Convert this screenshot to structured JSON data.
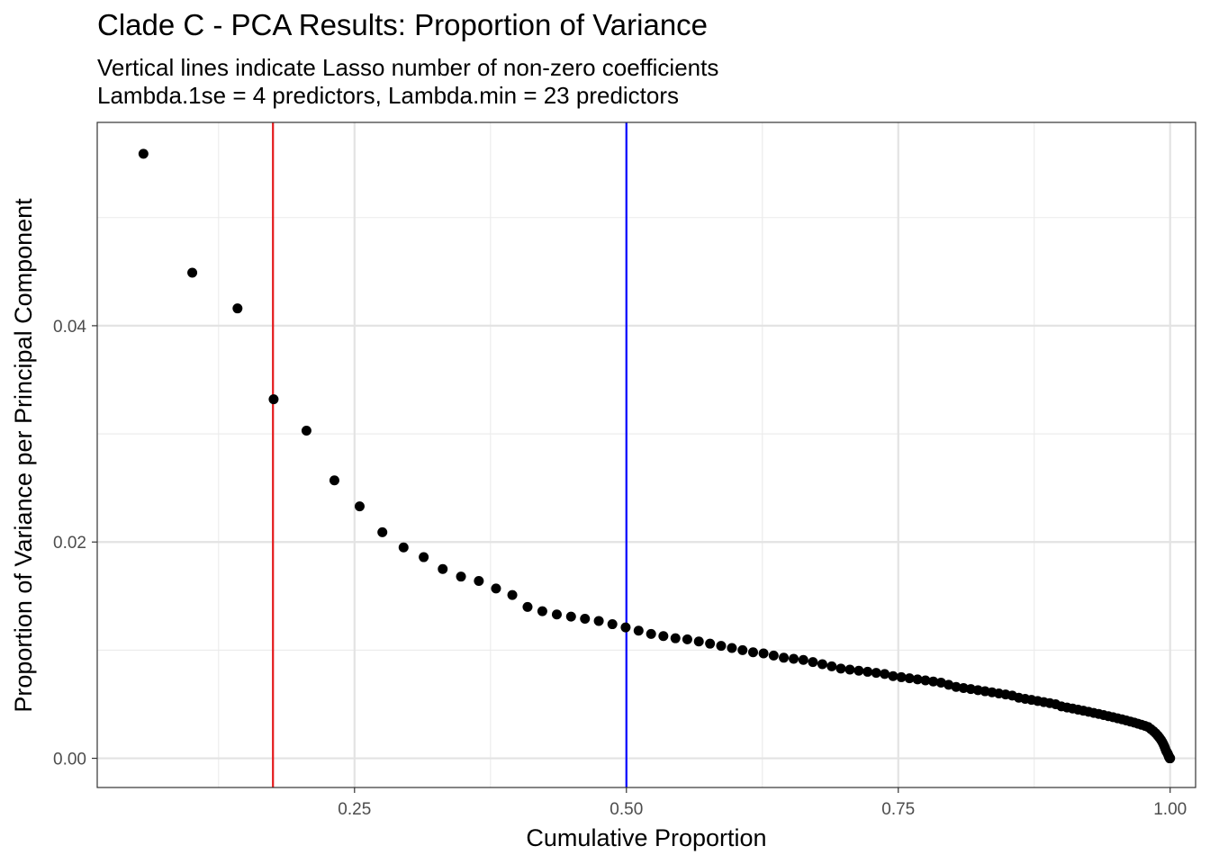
{
  "chart_data": {
    "type": "scatter",
    "title": "Clade C - PCA Results: Proportion of Variance",
    "subtitle": [
      "Vertical lines indicate Lasso number of non-zero coefficients",
      "Lambda.1se = 4 predictors, Lambda.min = 23 predictors"
    ],
    "xlabel": "Cumulative Proportion",
    "ylabel": "Proportion of Variance per Principal Component",
    "xlim": [
      0.0134,
      1.0234
    ],
    "ylim": [
      -0.0027,
      0.0588
    ],
    "xticks": [
      0.25,
      0.5,
      0.75,
      1.0
    ],
    "xtick_labels": [
      "0.25",
      "0.50",
      "0.75",
      "1.00"
    ],
    "yticks": [
      0.0,
      0.02,
      0.04
    ],
    "ytick_labels": [
      "0.00",
      "0.02",
      "0.04"
    ],
    "grid": true,
    "vlines": [
      {
        "label": "Lambda.1se = 4 predictors",
        "x": 0.175,
        "color": "#e41a1c"
      },
      {
        "label": "Lambda.min = 23 predictors",
        "x": 0.5,
        "color": "#0000ff"
      }
    ],
    "points_color": "#000000",
    "series": [
      {
        "x": [
          0.0559,
          0.1008,
          0.1424,
          0.1756,
          0.2058,
          0.2315,
          0.2547,
          0.2756,
          0.2951,
          0.3136,
          0.3311,
          0.3479,
          0.3643,
          0.3801,
          0.3951,
          0.4091,
          0.4227,
          0.436,
          0.4491,
          0.4619,
          0.4746,
          0.4871,
          0.4993,
          0.5112,
          0.5227,
          0.534,
          0.5451,
          0.556,
          0.5666,
          0.5769,
          0.5871,
          0.597,
          0.6068,
          0.6165,
          0.6261,
          0.6354,
          0.6447,
          0.6538,
          0.6627,
          0.6715,
          0.6802,
          0.6888,
          0.6972,
          0.7055,
          0.7137,
          0.7218,
          0.7297,
          0.7375,
          0.7452,
          0.7528,
          0.7603,
          0.7677,
          0.775,
          0.7822,
          0.7893,
          0.7963,
          0.8032,
          0.81,
          0.8167,
          0.8233,
          0.8298,
          0.8362,
          0.8425,
          0.8487,
          0.8548,
          0.8608,
          0.8667,
          0.8725,
          0.8782,
          0.8838,
          0.8893,
          0.8947,
          0.9,
          0.9052,
          0.9103,
          0.9153,
          0.9202,
          0.925,
          0.9297,
          0.9343,
          0.9388,
          0.9432,
          0.9475,
          0.9517,
          0.9557,
          0.9596,
          0.9634,
          0.967,
          0.9704,
          0.9737,
          0.9768,
          0.9797,
          0.9823,
          0.9847,
          0.9868,
          0.9886,
          0.9902,
          0.9916,
          0.9928,
          0.9938,
          0.9947,
          0.9955,
          0.9962,
          0.9968,
          0.9974,
          0.9979,
          0.9983,
          0.9987,
          0.999,
          0.9993,
          0.9996,
          0.9998,
          1.0
        ],
        "y": [
          0.0559,
          0.0449,
          0.0416,
          0.0332,
          0.0303,
          0.0257,
          0.0233,
          0.0209,
          0.0195,
          0.0186,
          0.0175,
          0.0168,
          0.0164,
          0.0157,
          0.0151,
          0.014,
          0.0136,
          0.0133,
          0.0131,
          0.0129,
          0.0127,
          0.0124,
          0.0121,
          0.0118,
          0.0115,
          0.0113,
          0.0111,
          0.011,
          0.0108,
          0.0106,
          0.0104,
          0.0102,
          0.01,
          0.0098,
          0.0097,
          0.0095,
          0.0093,
          0.0092,
          0.0091,
          0.0089,
          0.0087,
          0.0085,
          0.0083,
          0.0082,
          0.0081,
          0.008,
          0.0079,
          0.0078,
          0.0076,
          0.0075,
          0.0074,
          0.0073,
          0.0072,
          0.0071,
          0.007,
          0.0068,
          0.0066,
          0.0065,
          0.0064,
          0.0063,
          0.0062,
          0.0061,
          0.006,
          0.0059,
          0.0058,
          0.0056,
          0.0055,
          0.0054,
          0.0053,
          0.0052,
          0.0051,
          0.005,
          0.0048,
          0.0047,
          0.0046,
          0.0045,
          0.0044,
          0.0043,
          0.0042,
          0.0041,
          0.004,
          0.0039,
          0.0038,
          0.0037,
          0.0036,
          0.0035,
          0.0034,
          0.0033,
          0.0032,
          0.0031,
          0.003,
          0.0029,
          0.0027,
          0.0025,
          0.0023,
          0.0021,
          0.0019,
          0.0017,
          0.0015,
          0.0013,
          0.0011,
          0.0009,
          0.0007,
          0.0006,
          0.0005,
          0.0004,
          0.0003,
          0.0002,
          0.0001,
          0.0001,
          0.0,
          0.0,
          0.0
        ]
      }
    ]
  }
}
